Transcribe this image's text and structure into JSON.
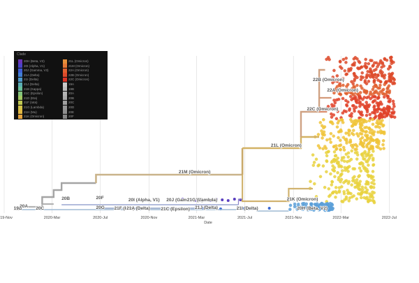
{
  "chart_data": {
    "type": "scatter",
    "title": "",
    "xlabel": "Date",
    "ylabel": "",
    "x_ticks": [
      "2019-Nov",
      "2020-Mar",
      "2020-Jul",
      "2020-Nov",
      "2021-Mar",
      "2021-Jul",
      "2021-Nov",
      "2022-Mar",
      "2022-Jul"
    ],
    "xlim": [
      "2019-11-01",
      "2022-08-10"
    ],
    "grid": true,
    "legend_position": "top-left",
    "legend_title": "Clade",
    "legend": [
      {
        "label": "20H (Beta, V2)",
        "color": "#6a35b8"
      },
      {
        "label": "20I (Alpha, V1)",
        "color": "#4a43c8"
      },
      {
        "label": "20J (Gamma, V3)",
        "color": "#3f5fd6"
      },
      {
        "label": "21A (Delta)",
        "color": "#427fd6"
      },
      {
        "label": "21I (Delta)",
        "color": "#4f98c9"
      },
      {
        "label": "21J (Delta)",
        "color": "#5aaeb5"
      },
      {
        "label": "21B (Kappa)",
        "color": "#6abf99"
      },
      {
        "label": "21C (Epsilon)",
        "color": "#84c47c"
      },
      {
        "label": "21D (Eta)",
        "color": "#a2c863"
      },
      {
        "label": "21F (Iota)",
        "color": "#bfc852"
      },
      {
        "label": "21G (Lambda)",
        "color": "#d4c449"
      },
      {
        "label": "21H (Mu)",
        "color": "#e0b843"
      },
      {
        "label": "21K (Omicron)",
        "color": "#e6a53f"
      },
      {
        "label": "21L (Omicron)",
        "color": "#e58f3a"
      },
      {
        "label": "21M (Omicron)",
        "color": "#e37734"
      },
      {
        "label": "22A (Omicron)",
        "color": "#e0602f"
      },
      {
        "label": "22B (Omicron)",
        "color": "#dd4a2a"
      },
      {
        "label": "22C (Omicron)",
        "color": "#db3426"
      },
      {
        "label": "19A",
        "color": "#c9c9c9"
      },
      {
        "label": "19B",
        "color": "#bdbdbd"
      },
      {
        "label": "20A",
        "color": "#b3b3b3"
      },
      {
        "label": "20B",
        "color": "#a9a9a9"
      },
      {
        "label": "20C",
        "color": "#a0a0a0"
      },
      {
        "label": "20D",
        "color": "#979797"
      },
      {
        "label": "20E",
        "color": "#8e8e8e"
      },
      {
        "label": "20F",
        "color": "#858585"
      }
    ],
    "clade_labels": [
      {
        "name": "19B",
        "date": "2019-11-25"
      },
      {
        "name": "20A",
        "date": "2019-12-10"
      },
      {
        "name": "20C",
        "date": "2020-01-20"
      },
      {
        "name": "20B",
        "date": "2020-03-25"
      },
      {
        "name": "20F",
        "date": "2020-06-20"
      },
      {
        "name": "20G",
        "date": "2020-06-20"
      },
      {
        "name": "21M (Omicron)",
        "date": "2021-01-15"
      },
      {
        "name": "20I (Alpha, V1)",
        "date": "2020-09-10"
      },
      {
        "name": "20J (Gamma, V3)",
        "date": "2020-12-15"
      },
      {
        "name": "21G (Lambda)",
        "date": "2021-02-05"
      },
      {
        "name": "21F (Iota)",
        "date": "2020-08-05"
      },
      {
        "name": "21A (Delta)",
        "date": "2020-09-05"
      },
      {
        "name": "21C (Epsilon)",
        "date": "2020-12-01"
      },
      {
        "name": "21J (Delta)",
        "date": "2021-02-25"
      },
      {
        "name": "21I (Delta)",
        "date": "2021-06-10"
      },
      {
        "name": "21K (Omicron)",
        "date": "2021-10-15"
      },
      {
        "name": "21L (Omicron)",
        "date": "2021-09-05"
      },
      {
        "name": "22C (Omicron)",
        "date": "2021-12-05"
      },
      {
        "name": "22B (Omicron)",
        "date": "2021-12-20"
      },
      {
        "name": "22A (Omicron)",
        "date": "2022-01-25"
      },
      {
        "name": "20H (Beta, V2)",
        "date": "2021-11-10"
      }
    ],
    "note": "Time-scaled phylogenetic tree of SARS-CoV-2 sequences colored by Nextstrain clade; tips spread from 2022-01 to 2022-07"
  }
}
